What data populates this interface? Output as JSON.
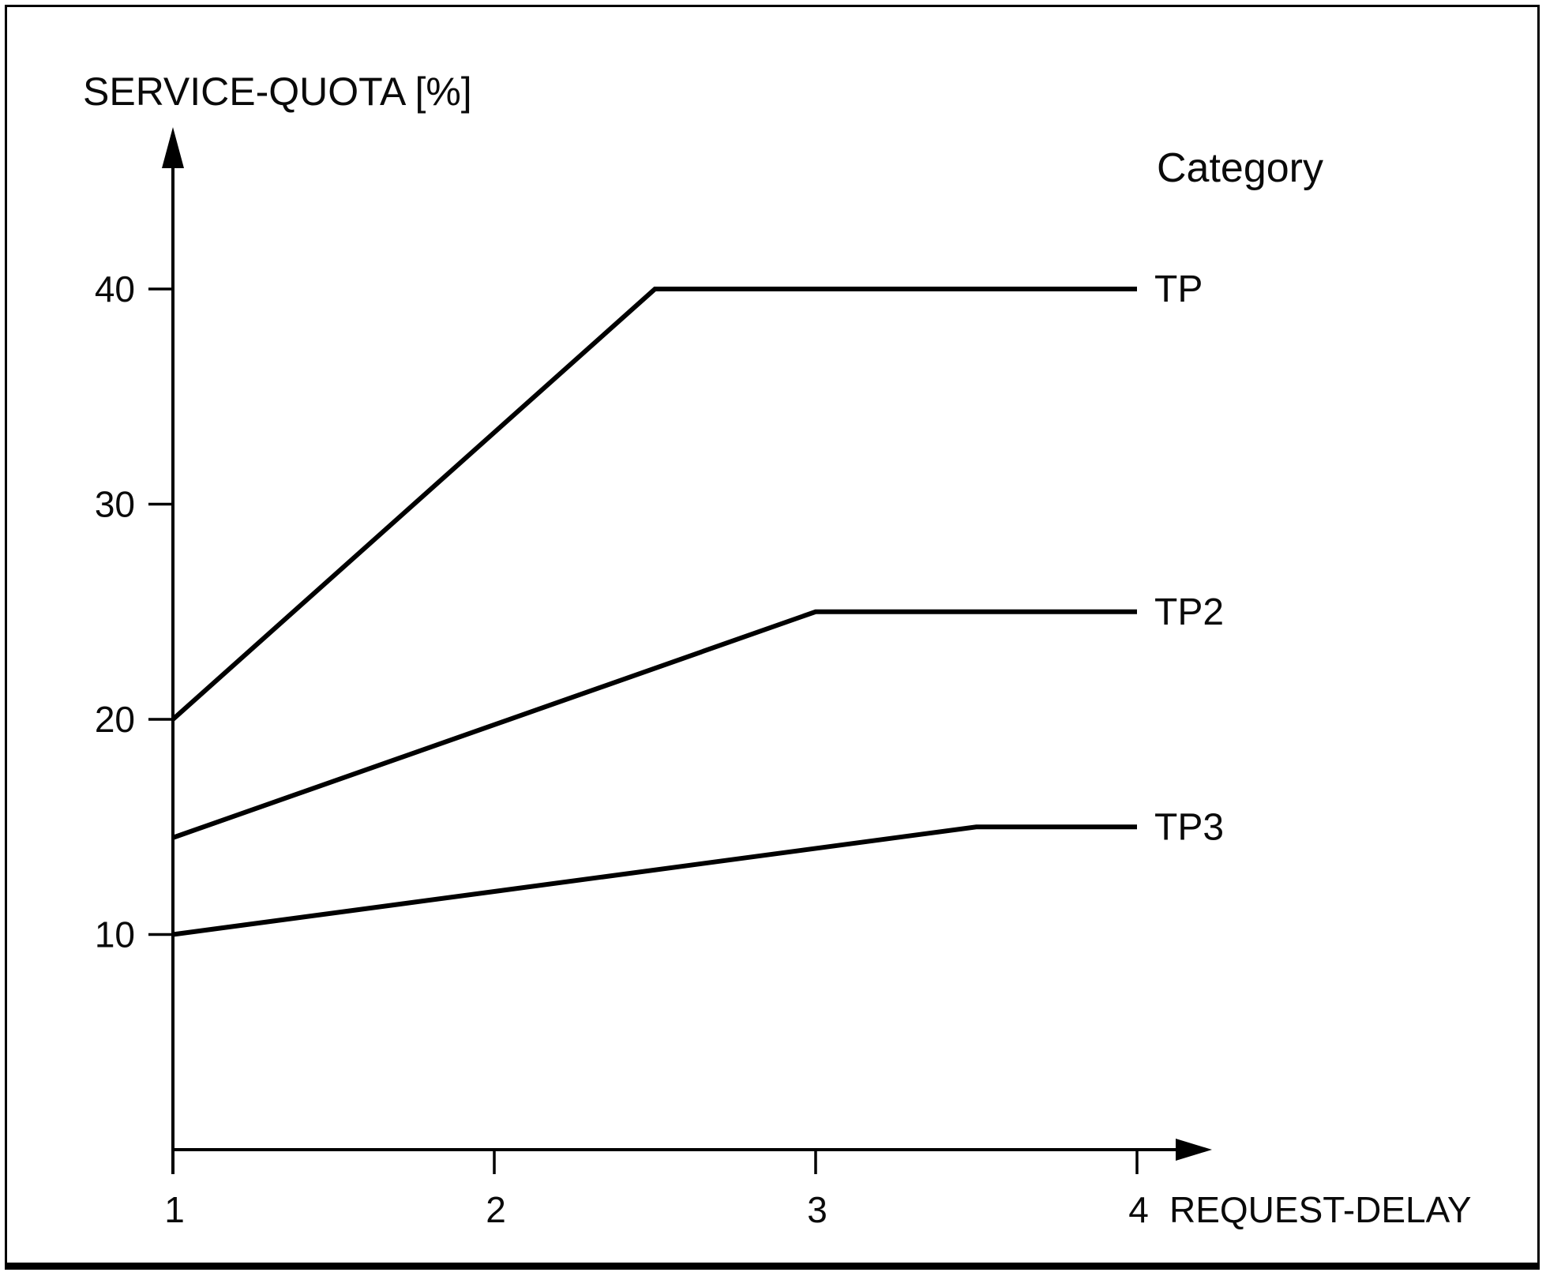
{
  "chart_data": {
    "type": "line",
    "title": "SERVICE-QUOTA [%]",
    "ylabel": "SERVICE-QUOTA [%]",
    "xlabel": "REQUEST-DELAY",
    "legend_title": "Category",
    "legend_position": "right-of-line-ends",
    "grid": false,
    "x_ticks": [
      1,
      2,
      3,
      4
    ],
    "y_ticks": [
      10,
      20,
      30,
      40
    ],
    "xlim": [
      1,
      4.3
    ],
    "ylim": [
      0,
      47
    ],
    "line_color": "#000000",
    "background_color": "#ffffff",
    "series": [
      {
        "name": "TP",
        "points": [
          [
            1,
            20
          ],
          [
            2.5,
            40
          ],
          [
            4,
            40
          ]
        ]
      },
      {
        "name": "TP2",
        "points": [
          [
            1,
            14.5
          ],
          [
            3,
            25
          ],
          [
            4,
            25
          ]
        ]
      },
      {
        "name": "TP3",
        "points": [
          [
            1,
            10
          ],
          [
            3.5,
            15
          ],
          [
            4,
            15
          ]
        ]
      }
    ]
  }
}
